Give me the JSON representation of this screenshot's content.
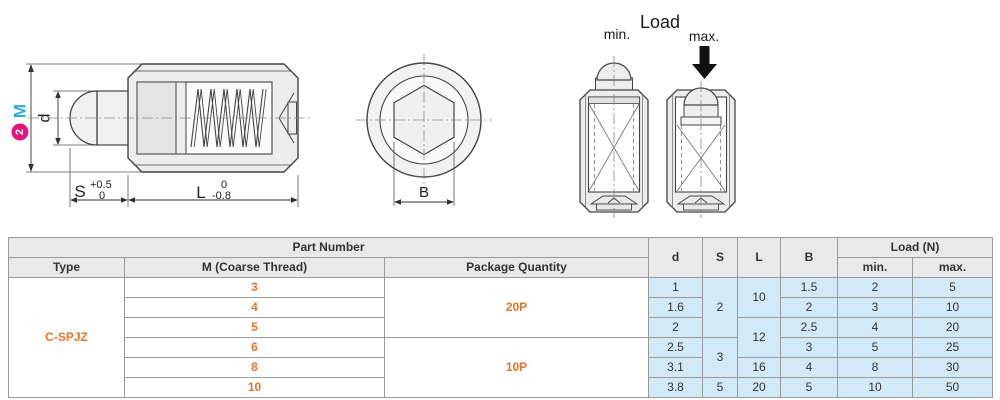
{
  "colors": {
    "callout_magenta": "#e4137e",
    "thread_label_cyan": "#2aa9e0",
    "accent_orange": "#e67426",
    "cell_blue": "#d2e9f8",
    "header_gray": "#e9e9e9"
  },
  "drawing": {
    "side_view": {
      "thread_callout_number": "2",
      "thread_label": "M",
      "dim_d": "d",
      "dim_s": "S",
      "s_tol_upper": "+0.5",
      "s_tol_lower": "0",
      "dim_l": "L",
      "l_tol_upper": "0",
      "l_tol_lower": "-0.8"
    },
    "end_view": {
      "dim_b": "B"
    },
    "load_view": {
      "title": "Load",
      "min_label": "min.",
      "max_label": "max."
    }
  },
  "table": {
    "header": {
      "part_number": "Part Number",
      "type": "Type",
      "m": "M (Coarse Thread)",
      "package_quantity": "Package Quantity",
      "d": "d",
      "s": "S",
      "l": "L",
      "b": "B",
      "load": "Load (N)",
      "min": "min.",
      "max": "max."
    },
    "body_rows": [
      [
        {
          "t": "C-SPJZ",
          "rs": 6,
          "s": "type"
        },
        {
          "t": "3",
          "s": "m"
        },
        {
          "t": "20P",
          "rs": 3,
          "s": "pkg"
        },
        {
          "t": "1",
          "s": "v"
        },
        {
          "t": "2",
          "rs": 3,
          "s": "v"
        },
        {
          "t": "10",
          "rs": 2,
          "s": "v"
        },
        {
          "t": "1.5",
          "s": "v"
        },
        {
          "t": "2",
          "s": "v"
        },
        {
          "t": "5",
          "s": "v"
        }
      ],
      [
        {
          "t": "4",
          "s": "m"
        },
        {
          "t": "1.6",
          "s": "v"
        },
        {
          "t": "2",
          "s": "v"
        },
        {
          "t": "3",
          "s": "v"
        },
        {
          "t": "10",
          "s": "v"
        }
      ],
      [
        {
          "t": "5",
          "s": "m"
        },
        {
          "t": "2",
          "s": "v"
        },
        {
          "t": "12",
          "rs": 2,
          "s": "v"
        },
        {
          "t": "2.5",
          "s": "v"
        },
        {
          "t": "4",
          "s": "v"
        },
        {
          "t": "20",
          "s": "v"
        }
      ],
      [
        {
          "t": "6",
          "s": "m"
        },
        {
          "t": "10P",
          "rs": 3,
          "s": "pkg"
        },
        {
          "t": "2.5",
          "s": "v"
        },
        {
          "t": "3",
          "rs": 2,
          "s": "v"
        },
        {
          "t": "3",
          "s": "v"
        },
        {
          "t": "5",
          "s": "v"
        },
        {
          "t": "25",
          "s": "v"
        }
      ],
      [
        {
          "t": "8",
          "s": "m"
        },
        {
          "t": "3.1",
          "s": "v"
        },
        {
          "t": "16",
          "s": "v"
        },
        {
          "t": "4",
          "s": "v"
        },
        {
          "t": "8",
          "s": "v"
        },
        {
          "t": "30",
          "s": "v"
        }
      ],
      [
        {
          "t": "10",
          "s": "m"
        },
        {
          "t": "3.8",
          "s": "v"
        },
        {
          "t": "5",
          "s": "v"
        },
        {
          "t": "20",
          "s": "v"
        },
        {
          "t": "5",
          "s": "v"
        },
        {
          "t": "10",
          "s": "v"
        },
        {
          "t": "50",
          "s": "v"
        }
      ]
    ]
  }
}
